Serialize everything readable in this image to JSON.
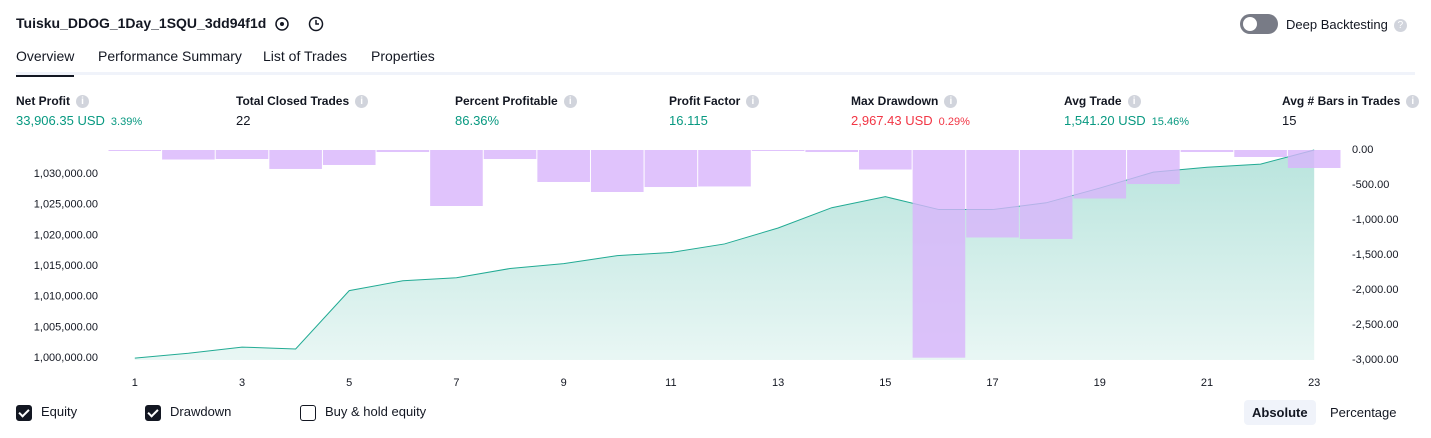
{
  "header": {
    "title": "Tuisku_DDOG_1Day_1SQU_3dd94f1d",
    "deep_backtesting": "Deep Backtesting"
  },
  "tabs": [
    "Overview",
    "Performance Summary",
    "List of Trades",
    "Properties"
  ],
  "stats": [
    {
      "label": "Net Profit",
      "value": "33,906.35 USD",
      "percent": "3.39%",
      "color": "#089981"
    },
    {
      "label": "Total Closed Trades",
      "value": "22",
      "color": "#131722"
    },
    {
      "label": "Percent Profitable",
      "value": "86.36%",
      "color": "#089981"
    },
    {
      "label": "Profit Factor",
      "value": "16.115",
      "color": "#089981"
    },
    {
      "label": "Max Drawdown",
      "value": "2,967.43 USD",
      "percent": "0.29%",
      "color": "#f23645"
    },
    {
      "label": "Avg Trade",
      "value": "1,541.20 USD",
      "percent": "15.46%",
      "color": "#089981"
    },
    {
      "label": "Avg # Bars in Trades",
      "value": "15",
      "color": "#131722"
    }
  ],
  "chart_data": {
    "type": "combo",
    "x": [
      1,
      2,
      3,
      4,
      5,
      6,
      7,
      8,
      9,
      10,
      11,
      12,
      13,
      14,
      15,
      16,
      17,
      18,
      19,
      20,
      21,
      22,
      23
    ],
    "xlim": [
      0.5,
      23.5
    ],
    "xticks": [
      1,
      3,
      5,
      7,
      9,
      11,
      13,
      15,
      17,
      19,
      21,
      23
    ],
    "ylim": [
      999700,
      1033900
    ],
    "yticks": [
      {
        "value": 1000000,
        "label": "1,000,000.00"
      },
      {
        "value": 1005000,
        "label": "1,005,000.00"
      },
      {
        "value": 1010000,
        "label": "1,010,000.00"
      },
      {
        "value": 1015000,
        "label": "1,015,000.00"
      },
      {
        "value": 1020000,
        "label": "1,020,000.00"
      },
      {
        "value": 1025000,
        "label": "1,025,000.00"
      },
      {
        "value": 1030000,
        "label": "1,030,000.00"
      }
    ],
    "y2lim": [
      -3000,
      0
    ],
    "y2ticks": [
      {
        "value": 0,
        "label": "0.00"
      },
      {
        "value": -500,
        "label": "-500.00"
      },
      {
        "value": -1000,
        "label": "-1,000.00"
      },
      {
        "value": -1500,
        "label": "-1,500.00"
      },
      {
        "value": -2000,
        "label": "-2,000.00"
      },
      {
        "value": -2500,
        "label": "-2,500.00"
      },
      {
        "value": -3000,
        "label": "-3,000.00"
      }
    ],
    "series": [
      {
        "name": "Drawdown",
        "type": "bar",
        "axis": "y2",
        "color": "#d8b4fb",
        "checked": true,
        "values": [
          -10,
          -136,
          -129,
          -271,
          -214,
          -29,
          -800,
          -129,
          -457,
          -600,
          -529,
          -521,
          -7,
          -29,
          -279,
          -2967,
          -1250,
          -1271,
          -693,
          -486,
          -29,
          -100,
          -257
        ]
      },
      {
        "name": "Equity",
        "type": "area",
        "color": "#22ab94",
        "checked": true,
        "values": [
          1000000,
          1000800,
          1001800,
          1001500,
          1011000,
          1012600,
          1013100,
          1014600,
          1015400,
          1016700,
          1017200,
          1018600,
          1021200,
          1024500,
          1026300,
          1024200,
          1024200,
          1025300,
          1027700,
          1030300,
          1031100,
          1031600,
          1033900
        ]
      }
    ]
  },
  "footer": {
    "buy_hold": "Buy & hold equity",
    "buy_hold_checked": false,
    "modes": [
      "Absolute",
      "Percentage"
    ],
    "active_mode": 0
  }
}
